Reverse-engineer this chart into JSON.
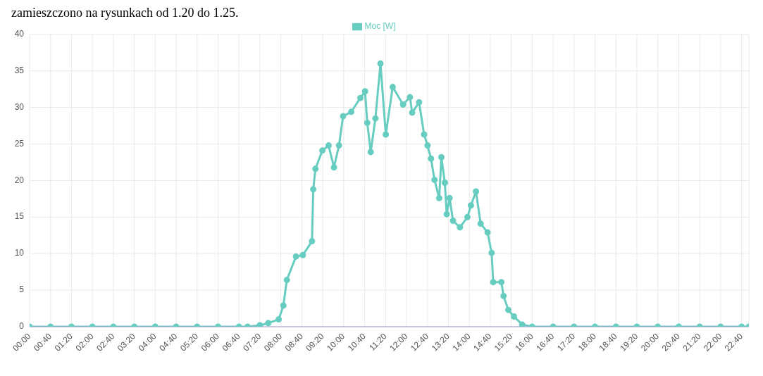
{
  "chart_data": {
    "type": "line",
    "annotations": [
      "zamieszczono na rysunkach od 1.20 do 1.25."
    ],
    "legend": "top",
    "grid": true,
    "marker": "circle",
    "line_style": "solid",
    "xlim": [
      0,
      22.9
    ],
    "xticks": [
      {
        "value": 0,
        "label": "00:00"
      },
      {
        "value": 0.667,
        "label": "00:40"
      },
      {
        "value": 1.333,
        "label": "01:20"
      },
      {
        "value": 2,
        "label": "02:00"
      },
      {
        "value": 2.667,
        "label": "02:40"
      },
      {
        "value": 3.333,
        "label": "03:20"
      },
      {
        "value": 4,
        "label": "04:00"
      },
      {
        "value": 4.667,
        "label": "04:40"
      },
      {
        "value": 5.333,
        "label": "05:20"
      },
      {
        "value": 6,
        "label": "06:00"
      },
      {
        "value": 6.667,
        "label": "06:40"
      },
      {
        "value": 7.333,
        "label": "07:20"
      },
      {
        "value": 8,
        "label": "08:00"
      },
      {
        "value": 8.667,
        "label": "08:40"
      },
      {
        "value": 9.333,
        "label": "09:20"
      },
      {
        "value": 10,
        "label": "10:00"
      },
      {
        "value": 10.667,
        "label": "10:40"
      },
      {
        "value": 11.333,
        "label": "11:20"
      },
      {
        "value": 12,
        "label": "12:00"
      },
      {
        "value": 12.667,
        "label": "12:40"
      },
      {
        "value": 13.333,
        "label": "13:20"
      },
      {
        "value": 14,
        "label": "14:00"
      },
      {
        "value": 14.667,
        "label": "14:40"
      },
      {
        "value": 15.333,
        "label": "15:20"
      },
      {
        "value": 16,
        "label": "16:00"
      },
      {
        "value": 16.667,
        "label": "16:40"
      },
      {
        "value": 17.333,
        "label": "17:20"
      },
      {
        "value": 18,
        "label": "18:00"
      },
      {
        "value": 18.667,
        "label": "18:40"
      },
      {
        "value": 19.333,
        "label": "19:20"
      },
      {
        "value": 20,
        "label": "20:00"
      },
      {
        "value": 20.667,
        "label": "20:40"
      },
      {
        "value": 21.333,
        "label": "21:20"
      },
      {
        "value": 22,
        "label": "22:00"
      },
      {
        "value": 22.667,
        "label": "22:40"
      }
    ],
    "ylim": [
      0,
      40
    ],
    "yticks": [
      0,
      5,
      10,
      15,
      20,
      25,
      30,
      35,
      40
    ],
    "series": [
      {
        "name": "Moc [W]",
        "color": "#66cdc0",
        "x": [
          0,
          0.667,
          1.333,
          2,
          2.667,
          3.333,
          4,
          4.667,
          5.333,
          6,
          6.667,
          6.94,
          7.33,
          7.6,
          7.93,
          8.08,
          8.19,
          8.48,
          8.7,
          8.99,
          9.03,
          9.1,
          9.32,
          9.52,
          9.69,
          9.85,
          9.98,
          10.24,
          10.53,
          10.68,
          10.75,
          10.86,
          11.01,
          11.17,
          11.34,
          11.56,
          11.89,
          12.11,
          12.18,
          12.4,
          12.56,
          12.67,
          12.78,
          12.89,
          13.04,
          13.11,
          13.22,
          13.28,
          13.37,
          13.48,
          13.7,
          13.94,
          14.05,
          14.21,
          14.36,
          14.58,
          14.71,
          14.76,
          15.02,
          15.09,
          15.24,
          15.42,
          15.68,
          16,
          16.667,
          17.333,
          18,
          18.667,
          19.333,
          20,
          20.667,
          21.333,
          22,
          22.667,
          22.9
        ],
        "values": [
          0,
          0,
          0,
          0,
          0,
          0,
          0,
          0,
          0,
          0,
          0,
          0,
          0.2,
          0.5,
          1.0,
          2.9,
          6.4,
          9.6,
          9.8,
          11.7,
          18.8,
          21.6,
          24.1,
          24.8,
          21.8,
          24.8,
          28.8,
          29.4,
          31.3,
          32.2,
          27.9,
          23.9,
          28.5,
          36.0,
          26.3,
          32.8,
          30.4,
          31.4,
          29.3,
          30.7,
          26.3,
          24.8,
          23.0,
          20.1,
          17.6,
          23.2,
          19.7,
          15.4,
          17.6,
          14.5,
          13.6,
          15.0,
          16.6,
          18.5,
          14.1,
          12.9,
          10.1,
          6.1,
          6.1,
          4.2,
          2.3,
          1.4,
          0.3,
          0,
          0,
          0,
          0,
          0,
          0,
          0,
          0,
          0,
          0,
          0,
          0
        ]
      }
    ]
  }
}
